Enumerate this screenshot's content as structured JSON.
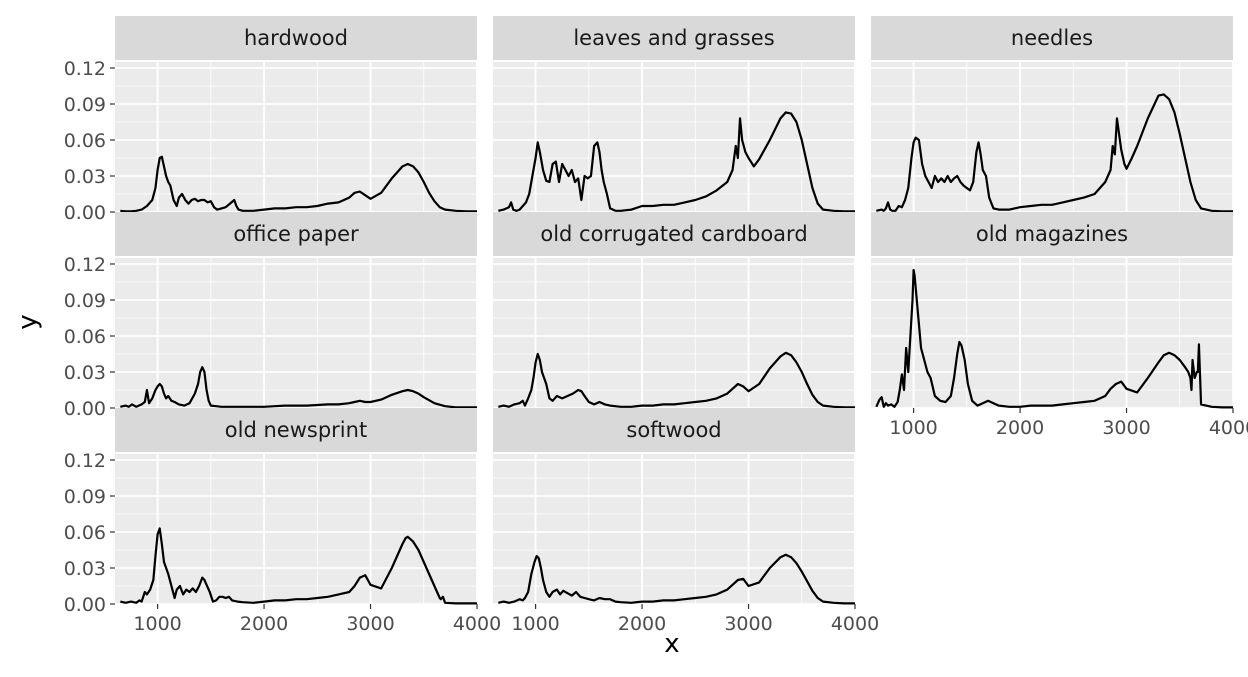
{
  "chart_data": {
    "type": "line",
    "layout": "facet_wrap",
    "xlabel": "x",
    "ylabel": "y",
    "xlim": [
      600,
      4000
    ],
    "ylim": [
      0,
      0.125
    ],
    "x_ticks": [
      1000,
      2000,
      3000,
      4000
    ],
    "x_tick_labels": [
      "1000",
      "2000",
      "3000",
      "4000"
    ],
    "y_ticks": [
      0,
      0.03,
      0.06,
      0.09,
      0.12
    ],
    "y_tick_labels": [
      "0.00",
      "0.03",
      "0.06",
      "0.09",
      "0.12"
    ],
    "panel_background": "#ebebeb",
    "strip_background": "#d9d9d9",
    "grid_color": "#ffffff",
    "line_color": "#000000",
    "grid": true,
    "panels": [
      {
        "title": "hardwood",
        "x": [
          650,
          700,
          750,
          800,
          850,
          900,
          950,
          980,
          1000,
          1020,
          1040,
          1060,
          1080,
          1100,
          1120,
          1150,
          1180,
          1200,
          1230,
          1260,
          1290,
          1320,
          1350,
          1380,
          1410,
          1440,
          1470,
          1500,
          1530,
          1560,
          1600,
          1640,
          1680,
          1720,
          1740,
          1760,
          1800,
          1900,
          2000,
          2100,
          2200,
          2300,
          2400,
          2500,
          2600,
          2700,
          2800,
          2850,
          2900,
          2950,
          3000,
          3100,
          3200,
          3300,
          3350,
          3400,
          3450,
          3500,
          3550,
          3600,
          3650,
          3700,
          3800,
          3900,
          4000
        ],
        "y": [
          0.001,
          0.0005,
          0.0005,
          0.001,
          0.002,
          0.005,
          0.01,
          0.02,
          0.035,
          0.045,
          0.046,
          0.038,
          0.03,
          0.025,
          0.022,
          0.01,
          0.005,
          0.012,
          0.015,
          0.01,
          0.007,
          0.01,
          0.011,
          0.009,
          0.01,
          0.01,
          0.008,
          0.009,
          0.004,
          0.002,
          0.003,
          0.004,
          0.007,
          0.01,
          0.005,
          0.002,
          0.001,
          0.001,
          0.002,
          0.003,
          0.003,
          0.004,
          0.004,
          0.005,
          0.007,
          0.008,
          0.012,
          0.016,
          0.017,
          0.014,
          0.011,
          0.016,
          0.028,
          0.038,
          0.04,
          0.038,
          0.033,
          0.025,
          0.016,
          0.009,
          0.004,
          0.002,
          0.001,
          0.0005,
          0.0005
        ]
      },
      {
        "title": "leaves and grasses",
        "x": [
          650,
          700,
          750,
          770,
          790,
          820,
          850,
          880,
          910,
          940,
          970,
          1000,
          1020,
          1040,
          1070,
          1100,
          1130,
          1160,
          1190,
          1220,
          1250,
          1280,
          1310,
          1340,
          1370,
          1400,
          1430,
          1460,
          1490,
          1520,
          1550,
          1580,
          1600,
          1620,
          1640,
          1670,
          1700,
          1750,
          1800,
          1900,
          2000,
          2100,
          2200,
          2300,
          2400,
          2500,
          2600,
          2700,
          2800,
          2850,
          2880,
          2900,
          2920,
          2940,
          2970,
          3000,
          3050,
          3100,
          3200,
          3300,
          3350,
          3400,
          3450,
          3500,
          3550,
          3600,
          3650,
          3700,
          3800,
          3900,
          4000
        ],
        "y": [
          0.001,
          0.002,
          0.004,
          0.008,
          0.002,
          0.001,
          0.002,
          0.005,
          0.008,
          0.015,
          0.03,
          0.045,
          0.058,
          0.05,
          0.035,
          0.026,
          0.025,
          0.04,
          0.042,
          0.025,
          0.04,
          0.035,
          0.03,
          0.035,
          0.025,
          0.028,
          0.01,
          0.03,
          0.028,
          0.03,
          0.055,
          0.058,
          0.05,
          0.035,
          0.025,
          0.015,
          0.003,
          0.001,
          0.001,
          0.002,
          0.005,
          0.005,
          0.006,
          0.006,
          0.008,
          0.01,
          0.013,
          0.018,
          0.025,
          0.035,
          0.055,
          0.045,
          0.078,
          0.06,
          0.05,
          0.045,
          0.038,
          0.044,
          0.06,
          0.078,
          0.083,
          0.082,
          0.075,
          0.06,
          0.04,
          0.02,
          0.007,
          0.002,
          0.001,
          0.0005,
          0.0005
        ]
      },
      {
        "title": "needles",
        "x": [
          650,
          700,
          720,
          740,
          760,
          780,
          800,
          830,
          860,
          890,
          920,
          950,
          980,
          1000,
          1020,
          1050,
          1080,
          1110,
          1140,
          1170,
          1200,
          1230,
          1260,
          1290,
          1320,
          1350,
          1380,
          1410,
          1440,
          1470,
          1500,
          1530,
          1560,
          1590,
          1610,
          1630,
          1650,
          1680,
          1710,
          1750,
          1800,
          1900,
          2000,
          2100,
          2200,
          2300,
          2400,
          2500,
          2600,
          2700,
          2800,
          2850,
          2870,
          2890,
          2910,
          2930,
          2950,
          2980,
          3000,
          3050,
          3100,
          3200,
          3300,
          3350,
          3400,
          3450,
          3500,
          3550,
          3600,
          3650,
          3700,
          3800,
          3900,
          4000
        ],
        "y": [
          0.001,
          0.002,
          0.001,
          0.003,
          0.008,
          0.002,
          0.001,
          0.001,
          0.005,
          0.004,
          0.01,
          0.02,
          0.045,
          0.058,
          0.062,
          0.06,
          0.04,
          0.03,
          0.025,
          0.02,
          0.03,
          0.025,
          0.028,
          0.025,
          0.03,
          0.025,
          0.028,
          0.03,
          0.025,
          0.022,
          0.02,
          0.018,
          0.025,
          0.05,
          0.058,
          0.048,
          0.035,
          0.03,
          0.012,
          0.003,
          0.002,
          0.002,
          0.004,
          0.005,
          0.006,
          0.006,
          0.008,
          0.01,
          0.012,
          0.015,
          0.025,
          0.035,
          0.055,
          0.048,
          0.078,
          0.065,
          0.052,
          0.04,
          0.036,
          0.045,
          0.055,
          0.078,
          0.097,
          0.098,
          0.094,
          0.083,
          0.065,
          0.045,
          0.025,
          0.01,
          0.003,
          0.001,
          0.0005,
          0.0005
        ]
      },
      {
        "title": "office paper",
        "x": [
          650,
          700,
          730,
          760,
          800,
          850,
          880,
          900,
          920,
          950,
          980,
          1000,
          1020,
          1040,
          1060,
          1080,
          1100,
          1130,
          1160,
          1200,
          1250,
          1300,
          1350,
          1380,
          1400,
          1420,
          1440,
          1460,
          1480,
          1500,
          1550,
          1600,
          1700,
          1800,
          1900,
          2000,
          2100,
          2200,
          2300,
          2400,
          2500,
          2600,
          2700,
          2800,
          2850,
          2900,
          2950,
          3000,
          3100,
          3200,
          3300,
          3350,
          3400,
          3450,
          3500,
          3600,
          3700,
          3800,
          3900,
          4000
        ],
        "y": [
          0.001,
          0.002,
          0.001,
          0.003,
          0.001,
          0.003,
          0.005,
          0.015,
          0.004,
          0.008,
          0.015,
          0.018,
          0.02,
          0.018,
          0.012,
          0.008,
          0.01,
          0.006,
          0.005,
          0.003,
          0.002,
          0.004,
          0.012,
          0.02,
          0.03,
          0.034,
          0.03,
          0.015,
          0.006,
          0.002,
          0.0015,
          0.001,
          0.001,
          0.001,
          0.001,
          0.001,
          0.0015,
          0.002,
          0.002,
          0.002,
          0.0025,
          0.003,
          0.003,
          0.004,
          0.005,
          0.006,
          0.005,
          0.005,
          0.007,
          0.011,
          0.014,
          0.015,
          0.014,
          0.012,
          0.009,
          0.004,
          0.0015,
          0.0005,
          0.0005,
          0.0005
        ]
      },
      {
        "title": "old corrugated cardboard",
        "x": [
          650,
          700,
          750,
          800,
          850,
          880,
          900,
          930,
          960,
          980,
          1000,
          1020,
          1040,
          1060,
          1080,
          1100,
          1130,
          1160,
          1200,
          1250,
          1300,
          1350,
          1400,
          1430,
          1460,
          1500,
          1550,
          1600,
          1650,
          1700,
          1800,
          1900,
          2000,
          2100,
          2200,
          2300,
          2400,
          2500,
          2600,
          2700,
          2800,
          2850,
          2900,
          2950,
          3000,
          3100,
          3200,
          3300,
          3350,
          3400,
          3450,
          3500,
          3550,
          3600,
          3650,
          3700,
          3800,
          3900,
          4000
        ],
        "y": [
          0.001,
          0.002,
          0.001,
          0.003,
          0.004,
          0.006,
          0.002,
          0.008,
          0.015,
          0.025,
          0.038,
          0.045,
          0.04,
          0.03,
          0.025,
          0.02,
          0.008,
          0.006,
          0.01,
          0.008,
          0.01,
          0.012,
          0.015,
          0.014,
          0.01,
          0.005,
          0.003,
          0.005,
          0.003,
          0.002,
          0.001,
          0.001,
          0.002,
          0.002,
          0.003,
          0.003,
          0.004,
          0.005,
          0.006,
          0.008,
          0.012,
          0.016,
          0.02,
          0.018,
          0.014,
          0.02,
          0.033,
          0.043,
          0.046,
          0.044,
          0.038,
          0.03,
          0.02,
          0.011,
          0.005,
          0.002,
          0.001,
          0.0005,
          0.0005
        ]
      },
      {
        "title": "old magazines",
        "x": [
          650,
          680,
          700,
          720,
          740,
          760,
          790,
          820,
          850,
          870,
          890,
          910,
          930,
          950,
          970,
          990,
          1000,
          1010,
          1030,
          1050,
          1070,
          1100,
          1130,
          1160,
          1200,
          1250,
          1300,
          1350,
          1380,
          1410,
          1430,
          1450,
          1480,
          1510,
          1550,
          1600,
          1650,
          1700,
          1750,
          1800,
          1900,
          2000,
          2100,
          2200,
          2300,
          2400,
          2500,
          2600,
          2700,
          2800,
          2850,
          2900,
          2950,
          3000,
          3100,
          3200,
          3300,
          3350,
          3400,
          3450,
          3500,
          3550,
          3580,
          3600,
          3610,
          3620,
          3640,
          3660,
          3670,
          3680,
          3700,
          3800,
          3900,
          4000
        ],
        "y": [
          0.001,
          0.007,
          0.009,
          0.001,
          0.004,
          0.002,
          0.003,
          0.001,
          0.005,
          0.015,
          0.028,
          0.015,
          0.05,
          0.03,
          0.06,
          0.09,
          0.115,
          0.11,
          0.09,
          0.07,
          0.05,
          0.04,
          0.03,
          0.025,
          0.01,
          0.006,
          0.005,
          0.01,
          0.025,
          0.045,
          0.055,
          0.052,
          0.04,
          0.02,
          0.006,
          0.002,
          0.004,
          0.006,
          0.004,
          0.002,
          0.001,
          0.001,
          0.002,
          0.002,
          0.002,
          0.003,
          0.004,
          0.005,
          0.006,
          0.01,
          0.016,
          0.02,
          0.022,
          0.016,
          0.013,
          0.025,
          0.038,
          0.044,
          0.046,
          0.044,
          0.04,
          0.034,
          0.03,
          0.025,
          0.015,
          0.04,
          0.025,
          0.03,
          0.03,
          0.053,
          0.003,
          0.001,
          0.0005,
          0.0005
        ]
      },
      {
        "title": "old newsprint",
        "x": [
          650,
          700,
          750,
          800,
          830,
          850,
          880,
          900,
          930,
          960,
          980,
          1000,
          1020,
          1040,
          1060,
          1080,
          1100,
          1130,
          1160,
          1180,
          1210,
          1240,
          1270,
          1300,
          1330,
          1360,
          1390,
          1420,
          1440,
          1460,
          1490,
          1520,
          1550,
          1580,
          1610,
          1640,
          1670,
          1700,
          1750,
          1800,
          1900,
          2000,
          2100,
          2200,
          2300,
          2400,
          2500,
          2600,
          2700,
          2800,
          2850,
          2900,
          2950,
          3000,
          3100,
          3200,
          3300,
          3330,
          3350,
          3400,
          3450,
          3500,
          3550,
          3600,
          3650,
          3660,
          3680,
          3700,
          3800,
          3900,
          4000
        ],
        "y": [
          0.002,
          0.001,
          0.002,
          0.001,
          0.003,
          0.002,
          0.01,
          0.008,
          0.012,
          0.02,
          0.04,
          0.058,
          0.063,
          0.05,
          0.035,
          0.03,
          0.025,
          0.015,
          0.005,
          0.012,
          0.015,
          0.008,
          0.012,
          0.01,
          0.013,
          0.01,
          0.015,
          0.022,
          0.02,
          0.016,
          0.01,
          0.002,
          0.003,
          0.006,
          0.006,
          0.005,
          0.006,
          0.003,
          0.002,
          0.0015,
          0.001,
          0.002,
          0.003,
          0.003,
          0.004,
          0.004,
          0.005,
          0.006,
          0.008,
          0.01,
          0.015,
          0.022,
          0.024,
          0.016,
          0.013,
          0.03,
          0.05,
          0.055,
          0.056,
          0.052,
          0.045,
          0.035,
          0.025,
          0.015,
          0.005,
          0.004,
          0.006,
          0.001,
          0.0005,
          0.0005,
          0.0005
        ]
      },
      {
        "title": "softwood",
        "x": [
          650,
          700,
          750,
          800,
          850,
          880,
          900,
          930,
          960,
          990,
          1010,
          1030,
          1050,
          1070,
          1100,
          1130,
          1160,
          1200,
          1230,
          1260,
          1300,
          1340,
          1380,
          1420,
          1460,
          1500,
          1550,
          1600,
          1650,
          1700,
          1750,
          1800,
          1900,
          2000,
          2100,
          2200,
          2300,
          2400,
          2500,
          2600,
          2700,
          2800,
          2850,
          2900,
          2950,
          3000,
          3100,
          3200,
          3300,
          3350,
          3400,
          3450,
          3500,
          3550,
          3600,
          3650,
          3700,
          3800,
          3900,
          4000
        ],
        "y": [
          0.001,
          0.002,
          0.001,
          0.002,
          0.004,
          0.003,
          0.005,
          0.01,
          0.025,
          0.035,
          0.04,
          0.038,
          0.03,
          0.02,
          0.01,
          0.006,
          0.01,
          0.012,
          0.008,
          0.011,
          0.009,
          0.007,
          0.01,
          0.006,
          0.005,
          0.004,
          0.003,
          0.005,
          0.004,
          0.004,
          0.002,
          0.0015,
          0.001,
          0.002,
          0.002,
          0.003,
          0.003,
          0.004,
          0.005,
          0.006,
          0.008,
          0.012,
          0.016,
          0.02,
          0.021,
          0.015,
          0.018,
          0.03,
          0.039,
          0.041,
          0.039,
          0.034,
          0.027,
          0.019,
          0.011,
          0.005,
          0.002,
          0.001,
          0.0005,
          0.0005
        ]
      }
    ]
  }
}
